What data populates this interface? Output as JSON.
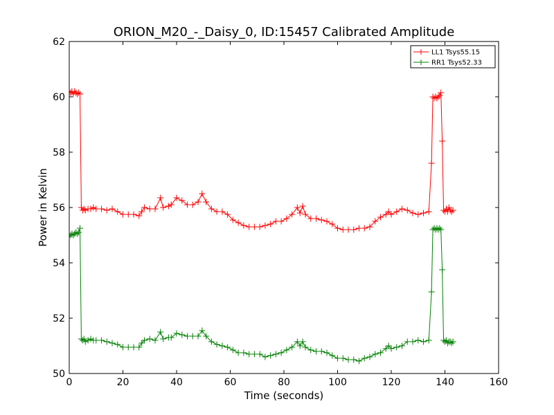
{
  "chart_data": {
    "type": "line",
    "title": "ORION_M20_-_Daisy_0, ID:15457 Calibrated Amplitude",
    "xlabel": "Time (seconds)",
    "ylabel": "Power in Kelvin",
    "xlim": [
      0,
      160
    ],
    "ylim": [
      50,
      62
    ],
    "xticks": [
      0,
      20,
      40,
      60,
      80,
      100,
      120,
      140,
      160
    ],
    "yticks": [
      50,
      52,
      54,
      56,
      58,
      60,
      62
    ],
    "grid": false,
    "legend_position": "top-right",
    "marker": "+",
    "series": [
      {
        "name": "LL1 Tsys55.15",
        "color": "#ff0000",
        "points": [
          [
            0.0,
            60.2
          ],
          [
            0.5,
            60.15
          ],
          [
            1.0,
            60.2
          ],
          [
            1.5,
            60.1
          ],
          [
            2.0,
            60.2
          ],
          [
            2.5,
            60.15
          ],
          [
            3.0,
            60.1
          ],
          [
            3.5,
            60.15
          ],
          [
            4.0,
            60.1
          ],
          [
            4.5,
            56.0
          ],
          [
            5.0,
            55.9
          ],
          [
            5.5,
            55.95
          ],
          [
            6.0,
            55.9
          ],
          [
            7.0,
            55.95
          ],
          [
            8.0,
            55.95
          ],
          [
            9.0,
            56.0
          ],
          [
            10.0,
            55.95
          ],
          [
            12,
            55.95
          ],
          [
            14,
            55.9
          ],
          [
            16,
            55.95
          ],
          [
            18,
            55.85
          ],
          [
            20,
            55.75
          ],
          [
            22,
            55.75
          ],
          [
            24,
            55.75
          ],
          [
            26,
            55.7
          ],
          [
            27,
            55.85
          ],
          [
            28,
            56.0
          ],
          [
            30,
            55.95
          ],
          [
            32,
            55.95
          ],
          [
            34,
            56.35
          ],
          [
            35,
            56.0
          ],
          [
            37,
            56.05
          ],
          [
            38,
            56.1
          ],
          [
            40,
            56.35
          ],
          [
            42,
            56.25
          ],
          [
            44,
            56.1
          ],
          [
            46,
            56.1
          ],
          [
            48,
            56.2
          ],
          [
            49.5,
            56.5
          ],
          [
            51,
            56.2
          ],
          [
            53,
            55.95
          ],
          [
            55,
            55.85
          ],
          [
            57,
            55.85
          ],
          [
            59,
            55.75
          ],
          [
            61,
            55.55
          ],
          [
            63,
            55.45
          ],
          [
            65,
            55.35
          ],
          [
            67,
            55.3
          ],
          [
            69,
            55.3
          ],
          [
            71,
            55.3
          ],
          [
            73,
            55.35
          ],
          [
            75,
            55.4
          ],
          [
            77,
            55.5
          ],
          [
            79,
            55.5
          ],
          [
            81,
            55.6
          ],
          [
            83,
            55.75
          ],
          [
            85,
            56.0
          ],
          [
            86,
            55.8
          ],
          [
            87,
            56.05
          ],
          [
            88,
            55.75
          ],
          [
            90,
            55.6
          ],
          [
            92,
            55.6
          ],
          [
            94,
            55.55
          ],
          [
            96,
            55.5
          ],
          [
            98,
            55.4
          ],
          [
            100,
            55.25
          ],
          [
            102,
            55.2
          ],
          [
            104,
            55.2
          ],
          [
            106,
            55.2
          ],
          [
            108,
            55.25
          ],
          [
            110,
            55.25
          ],
          [
            112,
            55.3
          ],
          [
            114,
            55.5
          ],
          [
            116,
            55.65
          ],
          [
            118,
            55.75
          ],
          [
            119,
            55.85
          ],
          [
            120,
            55.75
          ],
          [
            122,
            55.85
          ],
          [
            124,
            55.95
          ],
          [
            126,
            55.9
          ],
          [
            128,
            55.8
          ],
          [
            130,
            55.75
          ],
          [
            132,
            55.8
          ],
          [
            134,
            55.85
          ],
          [
            135,
            57.6
          ],
          [
            135.5,
            60.0
          ],
          [
            136,
            59.95
          ],
          [
            136.5,
            60.0
          ],
          [
            137,
            59.95
          ],
          [
            137.5,
            60.0
          ],
          [
            138,
            60.05
          ],
          [
            138.5,
            60.15
          ],
          [
            139,
            58.4
          ],
          [
            139.5,
            55.9
          ],
          [
            140,
            55.85
          ],
          [
            140.5,
            55.95
          ],
          [
            141,
            55.85
          ],
          [
            141.5,
            56.0
          ],
          [
            142,
            55.9
          ],
          [
            142.5,
            55.85
          ],
          [
            143,
            55.9
          ]
        ]
      },
      {
        "name": "RR1 Tsys52.33",
        "color": "#008000",
        "points": [
          [
            0.0,
            54.95
          ],
          [
            0.5,
            55.0
          ],
          [
            1.0,
            55.05
          ],
          [
            1.5,
            55.0
          ],
          [
            2.0,
            55.05
          ],
          [
            2.5,
            55.1
          ],
          [
            3.0,
            55.05
          ],
          [
            3.5,
            55.1
          ],
          [
            4.0,
            55.25
          ],
          [
            4.5,
            51.25
          ],
          [
            5.0,
            51.2
          ],
          [
            5.5,
            51.25
          ],
          [
            6.0,
            51.15
          ],
          [
            7.0,
            51.2
          ],
          [
            8.0,
            51.25
          ],
          [
            9.0,
            51.2
          ],
          [
            10.0,
            51.2
          ],
          [
            12,
            51.2
          ],
          [
            14,
            51.15
          ],
          [
            16,
            51.1
          ],
          [
            18,
            51.05
          ],
          [
            20,
            50.95
          ],
          [
            22,
            50.95
          ],
          [
            24,
            50.95
          ],
          [
            26,
            50.95
          ],
          [
            27,
            51.1
          ],
          [
            28,
            51.2
          ],
          [
            30,
            51.25
          ],
          [
            32,
            51.2
          ],
          [
            34,
            51.5
          ],
          [
            35,
            51.25
          ],
          [
            37,
            51.3
          ],
          [
            38,
            51.3
          ],
          [
            40,
            51.45
          ],
          [
            42,
            51.4
          ],
          [
            44,
            51.35
          ],
          [
            46,
            51.35
          ],
          [
            48,
            51.35
          ],
          [
            49.5,
            51.55
          ],
          [
            51,
            51.35
          ],
          [
            53,
            51.15
          ],
          [
            55,
            51.05
          ],
          [
            57,
            51.0
          ],
          [
            59,
            50.95
          ],
          [
            61,
            50.85
          ],
          [
            63,
            50.75
          ],
          [
            65,
            50.75
          ],
          [
            67,
            50.7
          ],
          [
            69,
            50.7
          ],
          [
            71,
            50.7
          ],
          [
            73,
            50.6
          ],
          [
            75,
            50.65
          ],
          [
            77,
            50.7
          ],
          [
            79,
            50.75
          ],
          [
            81,
            50.85
          ],
          [
            83,
            50.95
          ],
          [
            85,
            51.15
          ],
          [
            86,
            51.0
          ],
          [
            87,
            51.15
          ],
          [
            88,
            50.95
          ],
          [
            90,
            50.85
          ],
          [
            92,
            50.8
          ],
          [
            94,
            50.8
          ],
          [
            96,
            50.75
          ],
          [
            98,
            50.65
          ],
          [
            100,
            50.55
          ],
          [
            102,
            50.55
          ],
          [
            104,
            50.5
          ],
          [
            106,
            50.5
          ],
          [
            108,
            50.45
          ],
          [
            110,
            50.55
          ],
          [
            112,
            50.6
          ],
          [
            114,
            50.7
          ],
          [
            116,
            50.75
          ],
          [
            118,
            50.9
          ],
          [
            119,
            51.0
          ],
          [
            120,
            50.9
          ],
          [
            122,
            50.95
          ],
          [
            124,
            51.0
          ],
          [
            126,
            51.15
          ],
          [
            128,
            51.15
          ],
          [
            130,
            51.2
          ],
          [
            132,
            51.15
          ],
          [
            134,
            51.2
          ],
          [
            135,
            52.95
          ],
          [
            135.5,
            55.2
          ],
          [
            136,
            55.25
          ],
          [
            136.5,
            55.2
          ],
          [
            137,
            55.25
          ],
          [
            137.5,
            55.2
          ],
          [
            138,
            55.25
          ],
          [
            138.5,
            55.2
          ],
          [
            139,
            53.75
          ],
          [
            139.5,
            51.2
          ],
          [
            140,
            51.15
          ],
          [
            140.5,
            51.2
          ],
          [
            141,
            51.1
          ],
          [
            141.5,
            51.15
          ],
          [
            142,
            51.15
          ],
          [
            142.5,
            51.1
          ],
          [
            143,
            51.15
          ]
        ]
      }
    ]
  }
}
